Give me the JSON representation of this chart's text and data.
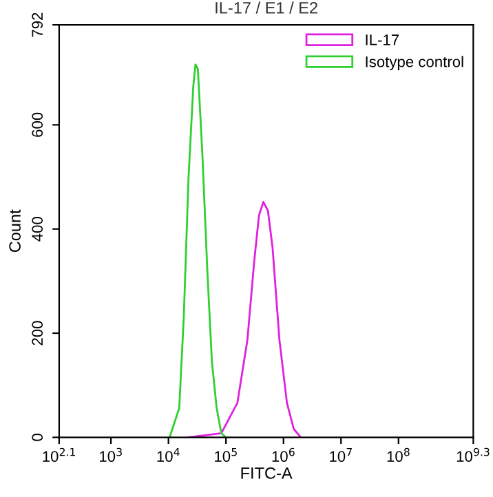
{
  "chart_data": {
    "type": "line",
    "title": "IL-17 / E1 / E2",
    "xlabel": "FITC-A",
    "ylabel": "Count",
    "log": "x",
    "xlim": [
      125.9,
      1995262315
    ],
    "xticks": [
      {
        "value": 125.9,
        "label": "10$^{2.1}$"
      },
      {
        "value": 1000,
        "label": "10$^{3}$"
      },
      {
        "value": 10000,
        "label": "10$^{4}$"
      },
      {
        "value": 100000,
        "label": "10$^{5}$"
      },
      {
        "value": 1000000,
        "label": "10$^{6}$"
      },
      {
        "value": 10000000,
        "label": "10$^{7}$"
      },
      {
        "value": 100000000,
        "label": "10$^{8}$"
      },
      {
        "value": 1995262315,
        "label": "10$^{9.3}$"
      }
    ],
    "ylim": [
      0,
      792
    ],
    "yticks": [
      0,
      200,
      400,
      600,
      792
    ],
    "grid": false,
    "legend": "top right",
    "marker": "none",
    "line_style": "solid",
    "series": [
      {
        "name": "IL-17",
        "color": "#e020e0",
        "x": [
          22000,
          51000,
          83000,
          158000,
          236000,
          310000,
          375000,
          447000,
          537000,
          646000,
          851000,
          1150000,
          1510000,
          2000000
        ],
        "values": [
          0,
          5,
          8,
          66,
          187,
          338,
          426,
          452,
          435,
          364,
          187,
          66,
          16,
          0
        ]
      },
      {
        "name": "Isotype control",
        "color": "#30d030",
        "x": [
          10471,
          15400,
          18500,
          22300,
          27000,
          29500,
          32500,
          39000,
          47500,
          57000,
          69000,
          83000,
          100000
        ],
        "values": [
          0,
          56,
          232,
          496,
          673,
          716,
          707,
          541,
          319,
          145,
          56,
          8,
          0
        ]
      }
    ]
  }
}
